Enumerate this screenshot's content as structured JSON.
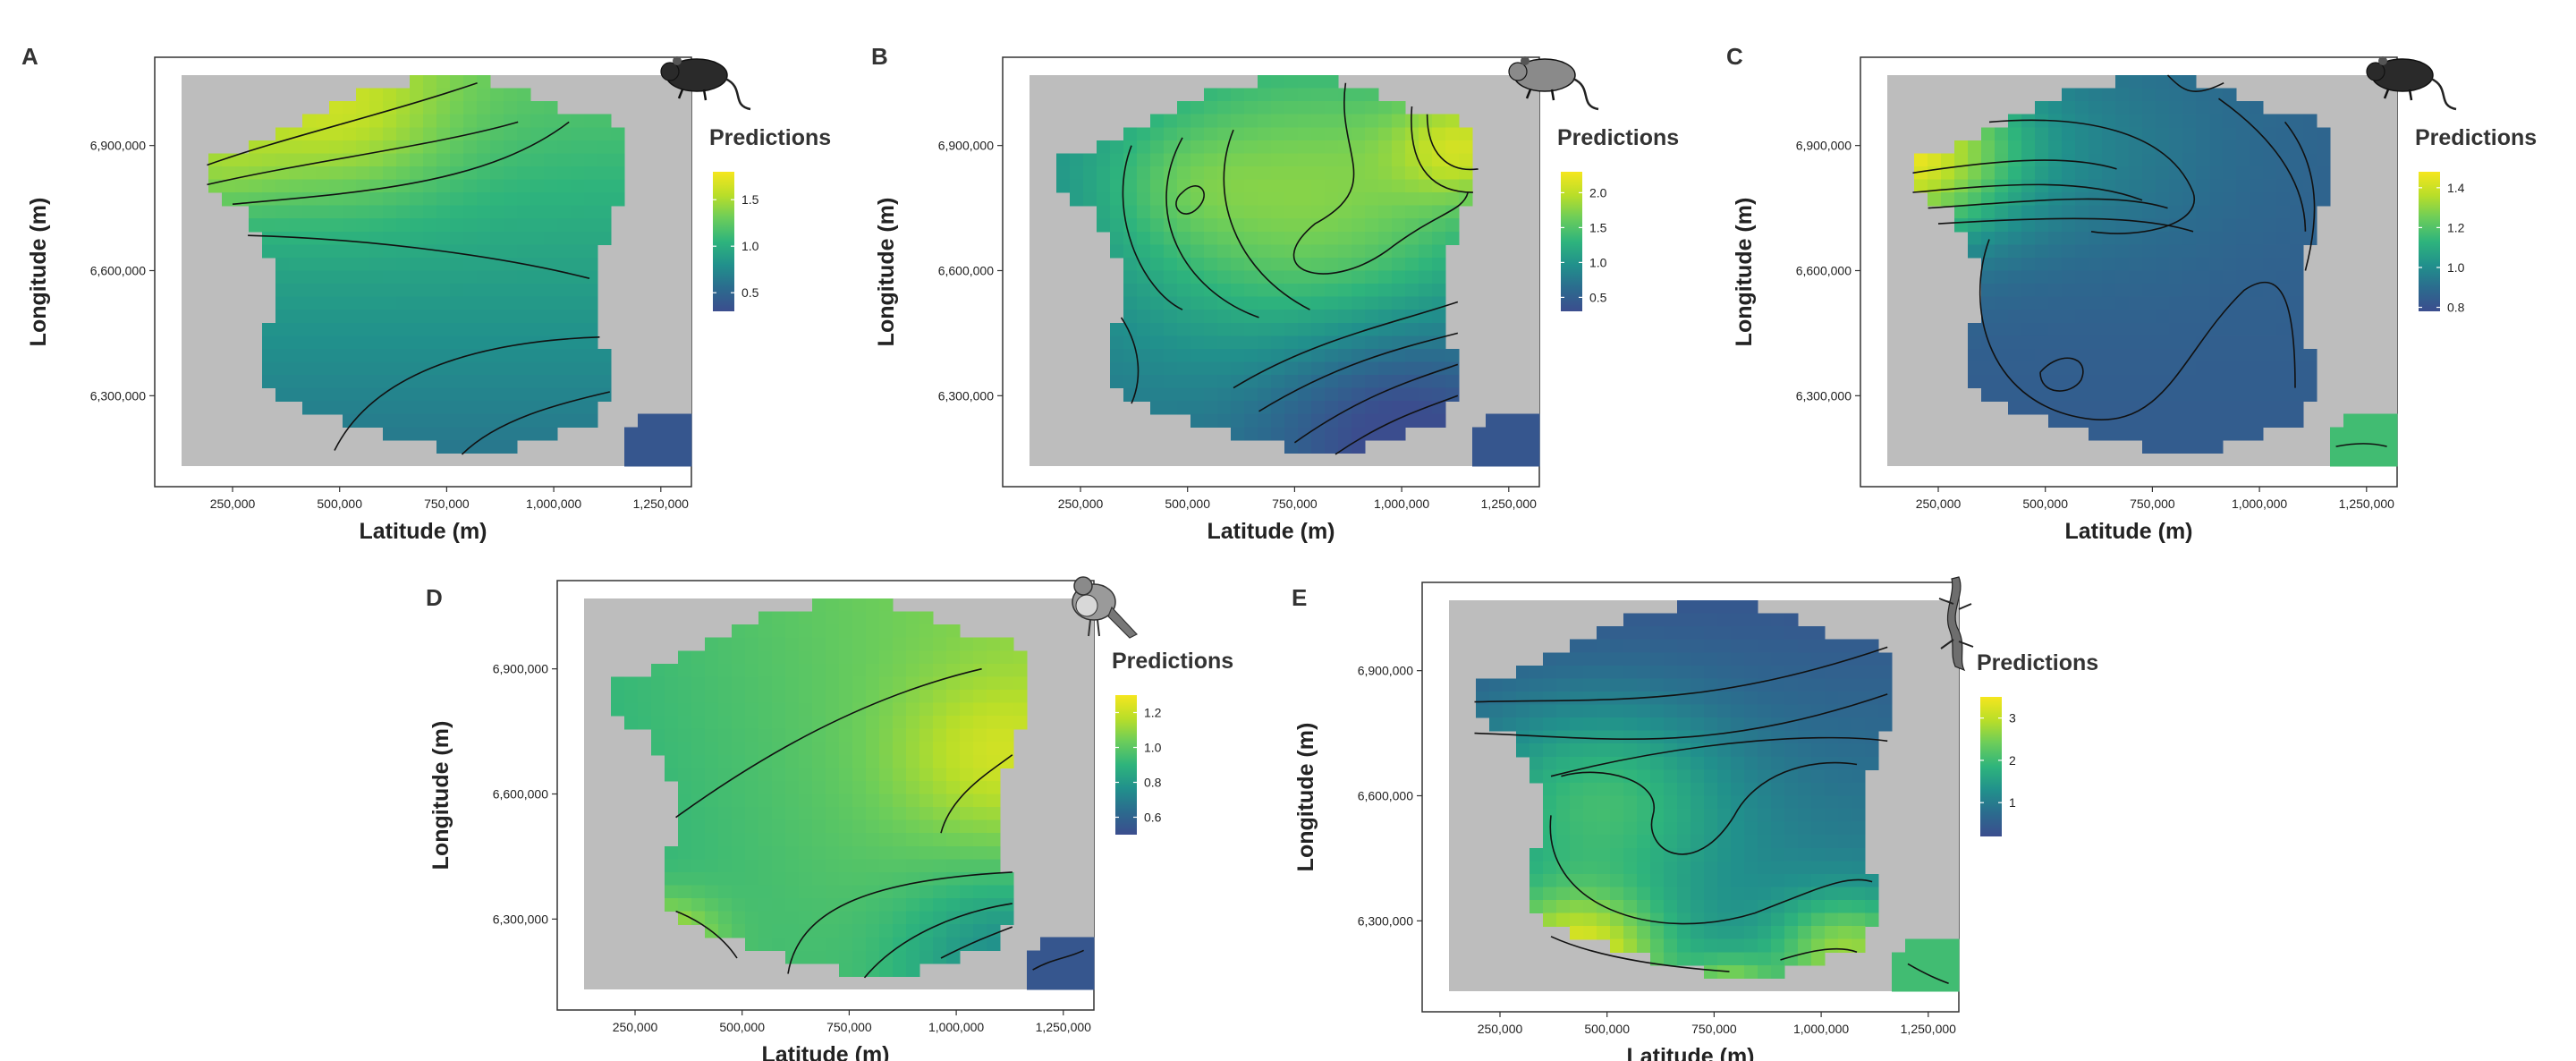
{
  "figure": {
    "ylabel": "Longitude (m)",
    "xlabel": "Latitude (m)",
    "legend_title": "Predictions",
    "colormap": [
      "#3b4d8e",
      "#2b6c8e",
      "#21908c",
      "#2eb47c",
      "#6ccd5a",
      "#b8de29",
      "#f5e61e"
    ],
    "background_color": "#bdbdbd"
  },
  "chart_data": [
    {
      "type": "heatmap",
      "panel": "A",
      "icon": "shrew-icon",
      "xlabel": "Latitude (m)",
      "ylabel": "Longitude (m)",
      "x_ticks": [
        "250,000",
        "500,000",
        "750,000",
        "1,000,000",
        "1,250,000"
      ],
      "y_ticks": [
        "6,300,000",
        "6,600,000",
        "6,900,000"
      ],
      "legend_title": "Predictions",
      "legend_ticks": [
        "1.5",
        "1.0",
        "0.5"
      ],
      "color_range": [
        0.3,
        1.8
      ]
    },
    {
      "type": "heatmap",
      "panel": "B",
      "icon": "vole-icon",
      "xlabel": "Latitude (m)",
      "ylabel": "Longitude (m)",
      "x_ticks": [
        "250,000",
        "500,000",
        "750,000",
        "1,000,000",
        "1,250,000"
      ],
      "y_ticks": [
        "6,300,000",
        "6,600,000",
        "6,900,000"
      ],
      "legend_title": "Predictions",
      "legend_ticks": [
        "2.0",
        "1.5",
        "1.0",
        "0.5"
      ],
      "color_range": [
        0.3,
        2.3
      ]
    },
    {
      "type": "heatmap",
      "panel": "C",
      "icon": "mouse-icon",
      "xlabel": "Latitude (m)",
      "ylabel": "Longitude (m)",
      "x_ticks": [
        "250,000",
        "500,000",
        "750,000",
        "1,000,000",
        "1,250,000"
      ],
      "y_ticks": [
        "6,300,000",
        "6,600,000",
        "6,900,000"
      ],
      "legend_title": "Predictions",
      "legend_ticks": [
        "1.4",
        "1.2",
        "1.0",
        "0.8"
      ],
      "color_range": [
        0.78,
        1.48
      ]
    },
    {
      "type": "heatmap",
      "panel": "D",
      "icon": "robin-icon",
      "xlabel": "Latitude (m)",
      "ylabel": "Longitude (m)",
      "x_ticks": [
        "250,000",
        "500,000",
        "750,000",
        "1,000,000",
        "1,250,000"
      ],
      "y_ticks": [
        "6,300,000",
        "6,600,000",
        "6,900,000"
      ],
      "legend_title": "Predictions",
      "legend_ticks": [
        "1.2",
        "1.0",
        "0.8",
        "0.6"
      ],
      "color_range": [
        0.5,
        1.3
      ]
    },
    {
      "type": "heatmap",
      "panel": "E",
      "icon": "lizard-icon",
      "xlabel": "Latitude (m)",
      "ylabel": "Longitude (m)",
      "x_ticks": [
        "250,000",
        "500,000",
        "750,000",
        "1,000,000",
        "1,250,000"
      ],
      "y_ticks": [
        "6,300,000",
        "6,600,000",
        "6,900,000"
      ],
      "legend_title": "Predictions",
      "legend_ticks": [
        "3",
        "2",
        "1"
      ],
      "color_range": [
        0.2,
        3.5
      ]
    }
  ]
}
